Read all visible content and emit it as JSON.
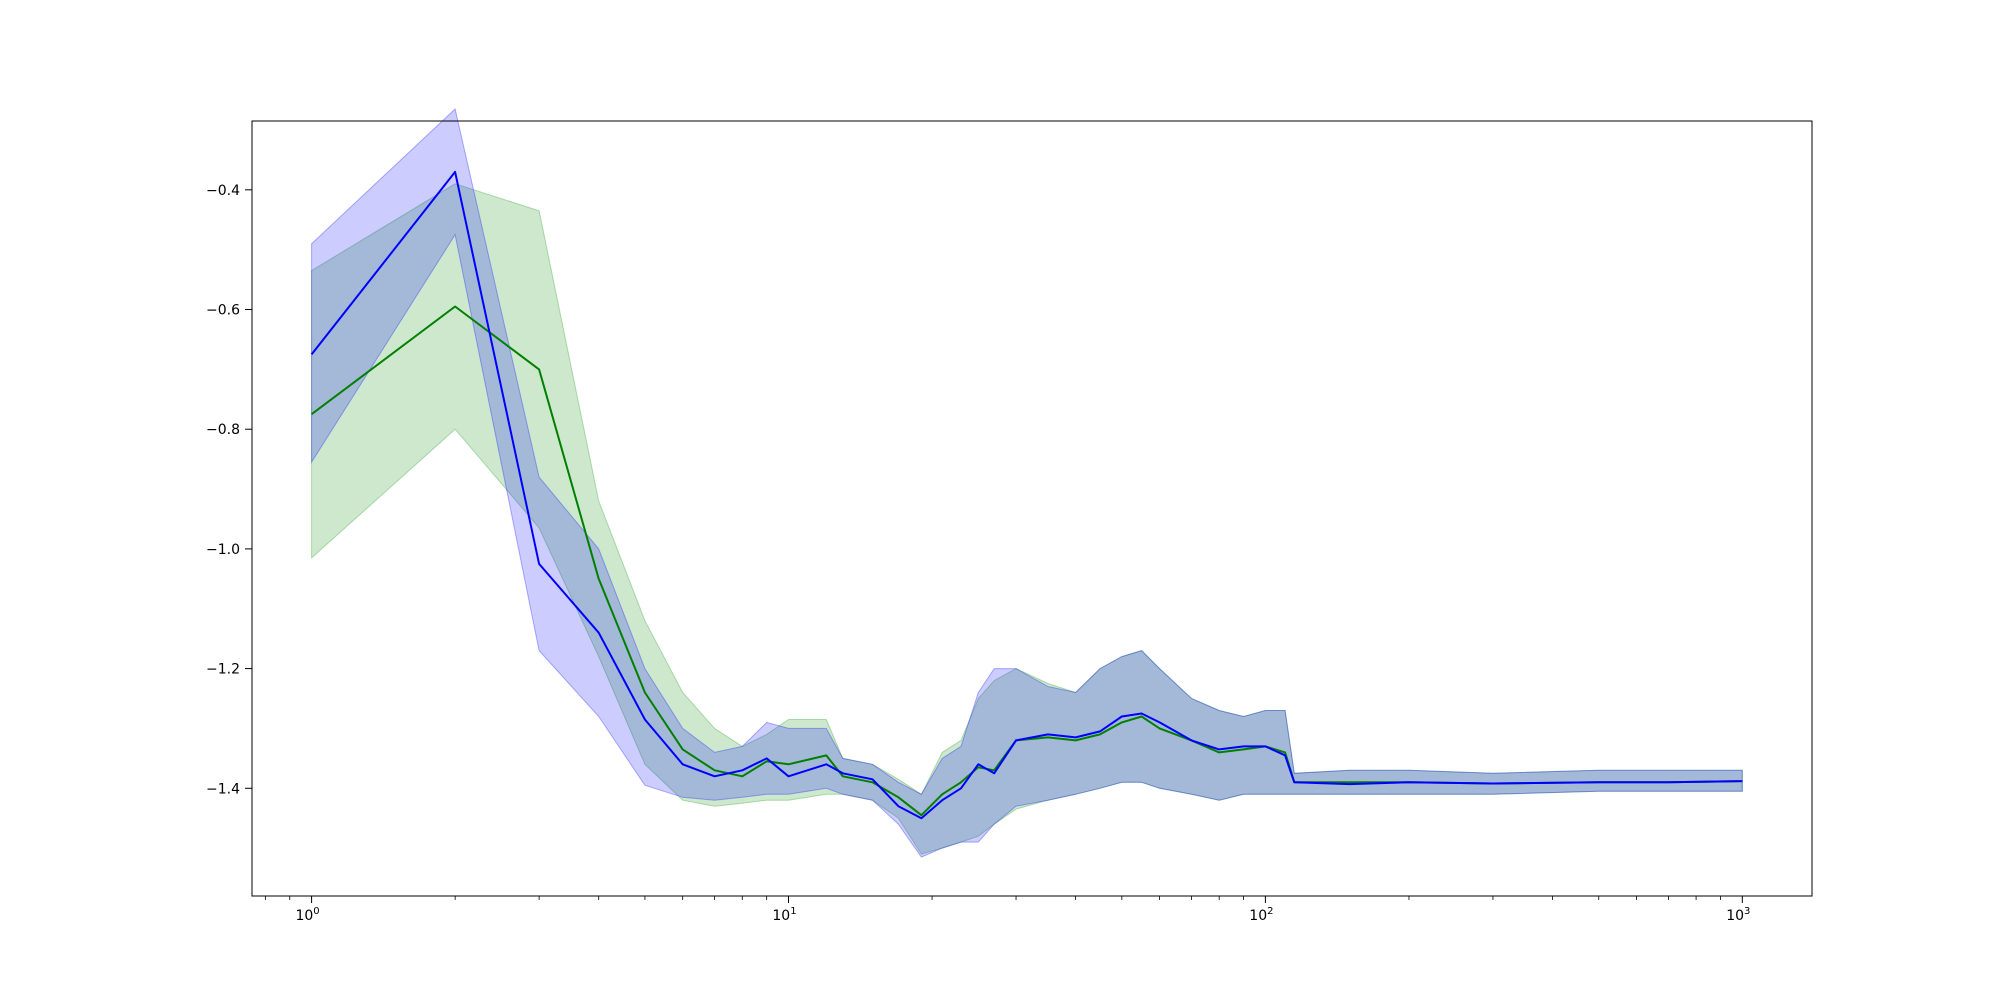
{
  "chart_data": {
    "type": "line",
    "title": "",
    "xlabel": "",
    "ylabel": "",
    "xscale": "log",
    "xlim": [
      0.75,
      1400
    ],
    "ylim": [
      -1.58,
      -0.285
    ],
    "grid": false,
    "x_ticks": [
      {
        "base": "10",
        "exp": "0",
        "value": 1
      },
      {
        "base": "10",
        "exp": "1",
        "value": 10
      },
      {
        "base": "10",
        "exp": "2",
        "value": 100
      },
      {
        "base": "10",
        "exp": "3",
        "value": 1000
      }
    ],
    "y_ticks": [
      {
        "label": "−0.4",
        "value": -0.4
      },
      {
        "label": "−0.6",
        "value": -0.6
      },
      {
        "label": "−0.8",
        "value": -0.8
      },
      {
        "label": "−1.0",
        "value": -1.0
      },
      {
        "label": "−1.2",
        "value": -1.2
      },
      {
        "label": "−1.4",
        "value": -1.4
      }
    ],
    "series": [
      {
        "color": "#008000",
        "band_color": "#2ca02c",
        "band_opacity": 0.24,
        "x": [
          1,
          2,
          3,
          4,
          5,
          6,
          7,
          8,
          9,
          10,
          12,
          13,
          15,
          17,
          19,
          21,
          23,
          25,
          27,
          30,
          35,
          40,
          45,
          50,
          55,
          60,
          70,
          80,
          90,
          100,
          110,
          115,
          150,
          200,
          300,
          500,
          700,
          1000
        ],
        "mean": [
          -0.775,
          -0.595,
          -0.7,
          -1.05,
          -1.24,
          -1.335,
          -1.37,
          -1.38,
          -1.355,
          -1.36,
          -1.345,
          -1.38,
          -1.39,
          -1.415,
          -1.445,
          -1.41,
          -1.39,
          -1.365,
          -1.37,
          -1.32,
          -1.315,
          -1.32,
          -1.31,
          -1.29,
          -1.28,
          -1.3,
          -1.32,
          -1.34,
          -1.335,
          -1.33,
          -1.34,
          -1.39,
          -1.39,
          -1.39,
          -1.392,
          -1.39,
          -1.39,
          -1.388
        ],
        "upper": [
          -0.535,
          -0.39,
          -0.435,
          -0.92,
          -1.12,
          -1.24,
          -1.3,
          -1.33,
          -1.31,
          -1.285,
          -1.285,
          -1.35,
          -1.36,
          -1.385,
          -1.41,
          -1.34,
          -1.32,
          -1.25,
          -1.22,
          -1.2,
          -1.225,
          -1.24,
          -1.2,
          -1.18,
          -1.17,
          -1.2,
          -1.25,
          -1.27,
          -1.28,
          -1.27,
          -1.27,
          -1.375,
          -1.37,
          -1.37,
          -1.375,
          -1.37,
          -1.37,
          -1.37
        ],
        "lower": [
          -1.015,
          -0.8,
          -0.965,
          -1.18,
          -1.36,
          -1.42,
          -1.43,
          -1.425,
          -1.42,
          -1.42,
          -1.41,
          -1.41,
          -1.42,
          -1.45,
          -1.51,
          -1.5,
          -1.49,
          -1.48,
          -1.46,
          -1.435,
          -1.42,
          -1.41,
          -1.4,
          -1.39,
          -1.39,
          -1.4,
          -1.41,
          -1.42,
          -1.41,
          -1.41,
          -1.41,
          -1.41,
          -1.41,
          -1.41,
          -1.41,
          -1.405,
          -1.405,
          -1.405
        ]
      },
      {
        "color": "#0000ff",
        "band_color": "#0000ff",
        "band_opacity": 0.2,
        "x": [
          1,
          2,
          3,
          4,
          5,
          6,
          7,
          8,
          9,
          10,
          12,
          13,
          15,
          17,
          19,
          21,
          23,
          25,
          27,
          30,
          35,
          40,
          45,
          50,
          55,
          60,
          70,
          80,
          90,
          100,
          110,
          115,
          150,
          200,
          300,
          500,
          700,
          1000
        ],
        "mean": [
          -0.675,
          -0.37,
          -1.025,
          -1.14,
          -1.285,
          -1.36,
          -1.38,
          -1.37,
          -1.35,
          -1.38,
          -1.36,
          -1.375,
          -1.385,
          -1.43,
          -1.45,
          -1.42,
          -1.4,
          -1.36,
          -1.375,
          -1.32,
          -1.31,
          -1.315,
          -1.305,
          -1.28,
          -1.275,
          -1.29,
          -1.32,
          -1.335,
          -1.33,
          -1.33,
          -1.345,
          -1.39,
          -1.393,
          -1.39,
          -1.392,
          -1.39,
          -1.39,
          -1.388
        ],
        "upper": [
          -0.49,
          -0.265,
          -0.88,
          -1.0,
          -1.2,
          -1.3,
          -1.34,
          -1.33,
          -1.29,
          -1.3,
          -1.3,
          -1.35,
          -1.36,
          -1.39,
          -1.41,
          -1.35,
          -1.33,
          -1.24,
          -1.2,
          -1.2,
          -1.23,
          -1.24,
          -1.2,
          -1.18,
          -1.17,
          -1.2,
          -1.25,
          -1.27,
          -1.28,
          -1.27,
          -1.27,
          -1.375,
          -1.37,
          -1.37,
          -1.375,
          -1.37,
          -1.37,
          -1.37
        ],
        "lower": [
          -0.855,
          -0.475,
          -1.17,
          -1.28,
          -1.395,
          -1.415,
          -1.42,
          -1.415,
          -1.41,
          -1.41,
          -1.4,
          -1.41,
          -1.42,
          -1.46,
          -1.515,
          -1.5,
          -1.49,
          -1.49,
          -1.46,
          -1.43,
          -1.42,
          -1.41,
          -1.4,
          -1.39,
          -1.39,
          -1.4,
          -1.41,
          -1.42,
          -1.41,
          -1.41,
          -1.41,
          -1.41,
          -1.41,
          -1.41,
          -1.41,
          -1.405,
          -1.405,
          -1.405
        ]
      }
    ]
  }
}
